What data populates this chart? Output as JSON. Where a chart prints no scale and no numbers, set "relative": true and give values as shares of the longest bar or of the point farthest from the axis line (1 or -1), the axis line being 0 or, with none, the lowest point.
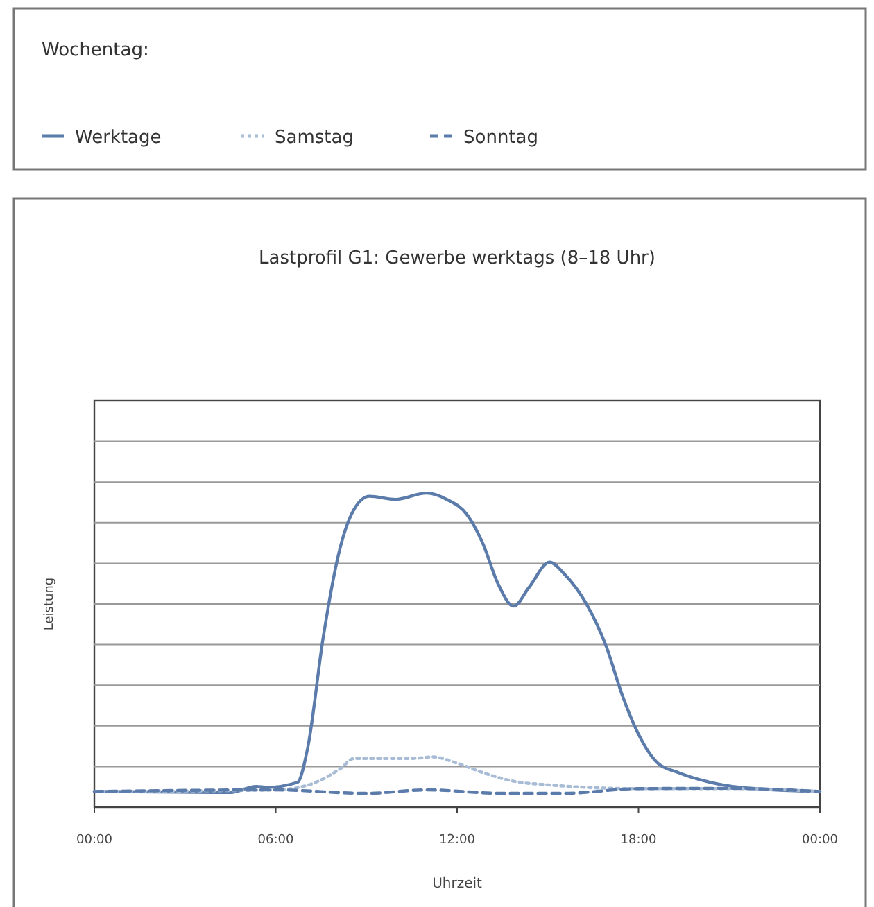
{
  "chart_data": {
    "type": "line",
    "title": "Lastprofil G1: Gewerbe werktags (8–18 Uhr)",
    "xlabel": "Uhrzeit",
    "ylabel": "Leistung",
    "legend_title": "Wochentag:",
    "legend": "top",
    "relative": true,
    "grid": "y",
    "xlim": [
      0,
      24
    ],
    "xticks": [
      {
        "value": 0,
        "label": "00:00"
      },
      {
        "value": 6,
        "label": "06:00"
      },
      {
        "value": 12,
        "label": "12:00"
      },
      {
        "value": 18,
        "label": "18:00"
      },
      {
        "value": 24,
        "label": "00:00"
      }
    ],
    "series": [
      {
        "name": "Werktage",
        "color": "#5b7bab",
        "line_style": "solid",
        "x": [
          0,
          4.5,
          5.36,
          5.7,
          6.72,
          7.06,
          7.57,
          8.09,
          8.6,
          9.1,
          9.96,
          10.98,
          11.66,
          12.34,
          12.85,
          13.36,
          13.87,
          14.38,
          15.06,
          15.57,
          16.26,
          16.94,
          17.45,
          17.96,
          18.64,
          19.32,
          20.34,
          21.36,
          24
        ],
        "values": [
          0.05,
          0.047,
          0.066,
          0.063,
          0.079,
          0.19,
          0.54,
          0.81,
          0.95,
          0.99,
          0.98,
          1.0,
          0.98,
          0.93,
          0.84,
          0.71,
          0.64,
          0.7,
          0.78,
          0.74,
          0.65,
          0.51,
          0.36,
          0.24,
          0.14,
          0.11,
          0.08,
          0.063,
          0.05
        ]
      },
      {
        "name": "Samstag",
        "color": "#a8bcd6",
        "line_style": "dotted",
        "x": [
          0,
          6,
          7.06,
          8.1,
          8.6,
          10.5,
          11.2,
          12,
          12.85,
          13.9,
          15,
          18,
          21,
          24
        ],
        "values": [
          0.05,
          0.055,
          0.07,
          0.12,
          0.155,
          0.155,
          0.16,
          0.14,
          0.11,
          0.082,
          0.071,
          0.059,
          0.059,
          0.05
        ]
      },
      {
        "name": "Sonntag",
        "color": "#5b7bab",
        "line_style": "dashed",
        "x": [
          0,
          6,
          9,
          11,
          13.5,
          15.5,
          18,
          21,
          24
        ],
        "values": [
          0.05,
          0.055,
          0.044,
          0.055,
          0.044,
          0.044,
          0.059,
          0.06,
          0.05
        ]
      }
    ]
  }
}
